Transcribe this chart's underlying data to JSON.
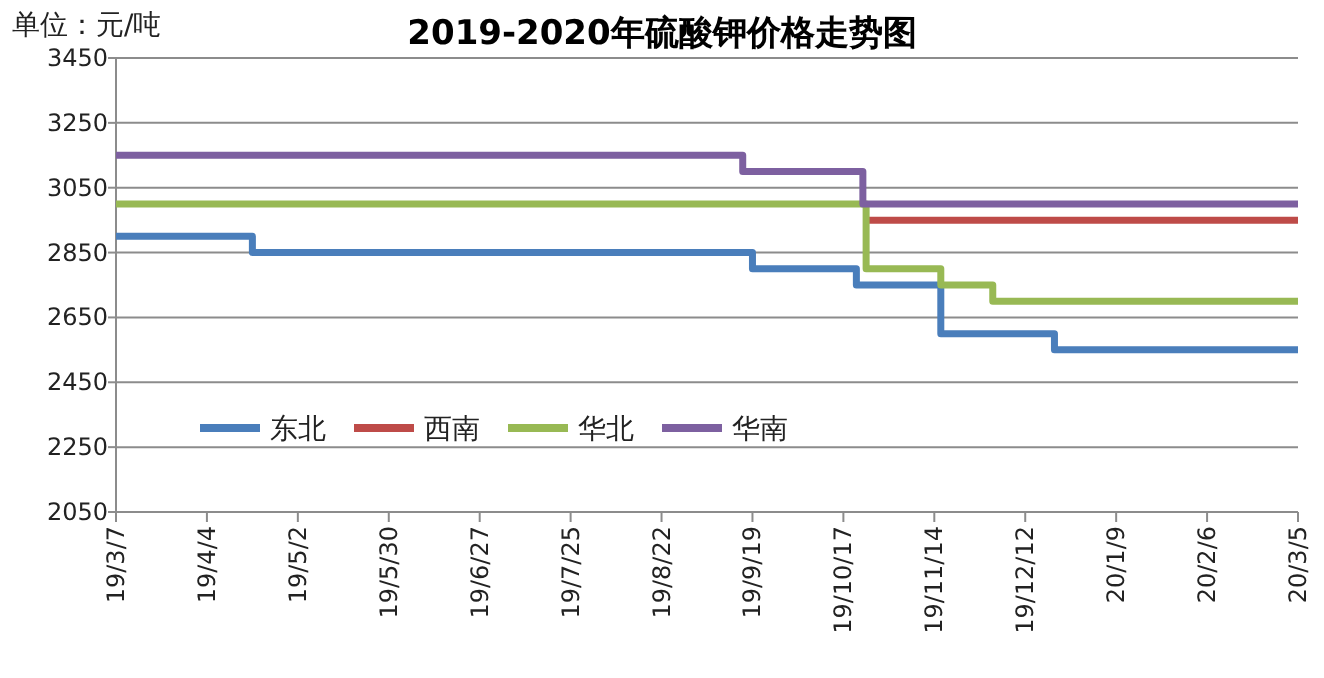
{
  "chart_data": {
    "type": "step",
    "title": "2019-2020年硫酸钾价格走势图",
    "ylabel": "单位：元/吨",
    "xlim": [
      "2019-03-07",
      "2020-03-05"
    ],
    "xticks": [
      {
        "value": "2019-03-07",
        "label": "19/3/7"
      },
      {
        "value": "2019-04-04",
        "label": "19/4/4"
      },
      {
        "value": "2019-05-02",
        "label": "19/5/2"
      },
      {
        "value": "2019-05-30",
        "label": "19/5/30"
      },
      {
        "value": "2019-06-27",
        "label": "19/6/27"
      },
      {
        "value": "2019-07-25",
        "label": "19/7/25"
      },
      {
        "value": "2019-08-22",
        "label": "19/8/22"
      },
      {
        "value": "2019-09-19",
        "label": "19/9/19"
      },
      {
        "value": "2019-10-17",
        "label": "19/10/17"
      },
      {
        "value": "2019-11-14",
        "label": "19/11/14"
      },
      {
        "value": "2019-12-12",
        "label": "19/12/12"
      },
      {
        "value": "2020-01-09",
        "label": "20/1/9"
      },
      {
        "value": "2020-02-06",
        "label": "20/2/6"
      },
      {
        "value": "2020-03-05",
        "label": "20/3/5"
      }
    ],
    "ylim": [
      2050,
      3450
    ],
    "yticks": [
      2050,
      2250,
      2450,
      2650,
      2850,
      3050,
      3250,
      3450
    ],
    "grid": "y",
    "legend": "left",
    "line_style": "solid",
    "marker": "none",
    "series": [
      {
        "name": "东北",
        "color": "#4a7ebb",
        "x": [
          "2019-03-07",
          "2019-04-18",
          "2019-09-19",
          "2019-10-21",
          "2019-11-16",
          "2019-12-21",
          "2020-03-05"
        ],
        "values": [
          2900,
          2850,
          2800,
          2750,
          2600,
          2550,
          2550
        ]
      },
      {
        "name": "西南",
        "color": "#be4b48",
        "x": [
          "2019-10-24",
          "2020-03-05"
        ],
        "values": [
          2950,
          2950
        ]
      },
      {
        "name": "华北",
        "color": "#98b954",
        "x": [
          "2019-03-07",
          "2019-10-24",
          "2019-11-16",
          "2019-12-02",
          "2020-03-05"
        ],
        "values": [
          3000,
          2800,
          2750,
          2700,
          2700
        ]
      },
      {
        "name": "华南",
        "color": "#7d60a0",
        "x": [
          "2019-03-07",
          "2019-09-16",
          "2019-10-23",
          "2020-03-05"
        ],
        "values": [
          3150,
          3100,
          3000,
          3000
        ]
      }
    ]
  }
}
